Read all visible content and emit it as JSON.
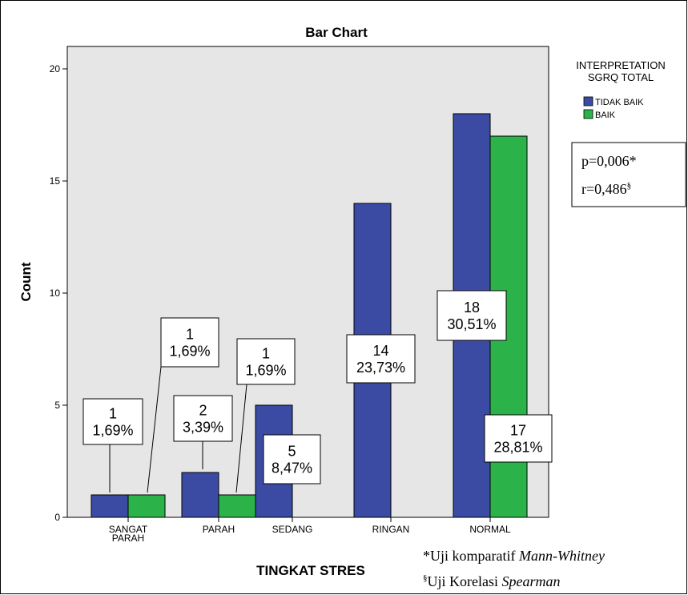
{
  "chart_data": {
    "type": "bar",
    "title": "Bar Chart",
    "xlabel": "TINGKAT STRES",
    "ylabel": "Count",
    "ylim": [
      0,
      21
    ],
    "yticks": [
      0,
      5,
      10,
      15,
      20
    ],
    "categories": [
      "SANGAT PARAH",
      "PARAH",
      "SEDANG",
      "RINGAN",
      "NORMAL"
    ],
    "series": [
      {
        "name": "TIDAK BAIK",
        "color": "#3b4ba3",
        "values": [
          1,
          2,
          5,
          14,
          18
        ],
        "labels": [
          [
            "1",
            "1,69%"
          ],
          [
            "2",
            "3,39%"
          ],
          [
            "5",
            "8,47%"
          ],
          [
            "14",
            "23,73%"
          ],
          [
            "18",
            "30,51%"
          ]
        ]
      },
      {
        "name": "BAIK",
        "color": "#2bb34a",
        "values": [
          1,
          1,
          0,
          0,
          17
        ],
        "labels": [
          [
            "1",
            "1,69%"
          ],
          [
            "1",
            "1,69%"
          ],
          null,
          null,
          [
            "17",
            "28,81%"
          ]
        ]
      }
    ],
    "legend_title": [
      "INTERPRETATION",
      "SGRQ TOTAL"
    ],
    "legend_position": "right",
    "plot_background": "#e6e6e6",
    "grid": false
  },
  "stats_box": {
    "p": "p=0,006*",
    "r_prefix": "r=0,486",
    "r_sup": "§"
  },
  "notes": {
    "line1_prefix": "*Uji komparatif ",
    "line1_italic": "Mann-Whitney",
    "line2_sup": "§",
    "line2_prefix": "Uji Korelasi ",
    "line2_italic": "Spearman"
  }
}
